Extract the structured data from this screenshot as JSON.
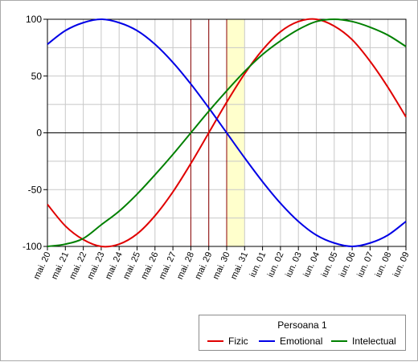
{
  "chart_data": {
    "type": "line",
    "x": [
      "mai. 20",
      "mai. 21",
      "mai. 22",
      "mai. 23",
      "mai. 24",
      "mai. 25",
      "mai. 26",
      "mai. 27",
      "mai. 28",
      "mai. 29",
      "mai. 30",
      "mai. 31",
      "iun. 01",
      "iun. 02",
      "iun. 03",
      "iun. 04",
      "iun. 05",
      "iun. 06",
      "iun. 07",
      "iun. 08",
      "iun. 09"
    ],
    "ylim": [
      -100,
      100
    ],
    "yticks": [
      "100",
      "50",
      "0",
      "-50",
      "-100"
    ],
    "grid": true,
    "legend_title": "Persoana 1",
    "legend_position": "bottom-right",
    "series": [
      {
        "name": "Fizic",
        "color": "#e00000",
        "values": [
          -63,
          -82,
          -94,
          -100,
          -98,
          -89,
          -73,
          -52,
          -27,
          0,
          27,
          52,
          73,
          89,
          98,
          100,
          94,
          82,
          63,
          40,
          14
        ]
      },
      {
        "name": "Emotional",
        "color": "#0000e6",
        "values": [
          78,
          90,
          97,
          100,
          97,
          90,
          78,
          62,
          43,
          22,
          0,
          -22,
          -43,
          -62,
          -78,
          -90,
          -97,
          -100,
          -97,
          -90,
          -78
        ]
      },
      {
        "name": "Intelectual",
        "color": "#008000",
        "values": [
          -100,
          -98,
          -93,
          -81,
          -69,
          -54,
          -37,
          -19,
          0,
          19,
          37,
          54,
          69,
          81,
          91,
          98,
          100,
          98,
          93,
          86,
          76
        ]
      }
    ],
    "vertical_markers": [
      "mai. 28",
      "mai. 29",
      "mai. 30"
    ],
    "marker_color": "#8b0000",
    "highlight_band": [
      "mai. 30",
      "mai. 31"
    ],
    "highlight_color": "#ffffcc"
  }
}
